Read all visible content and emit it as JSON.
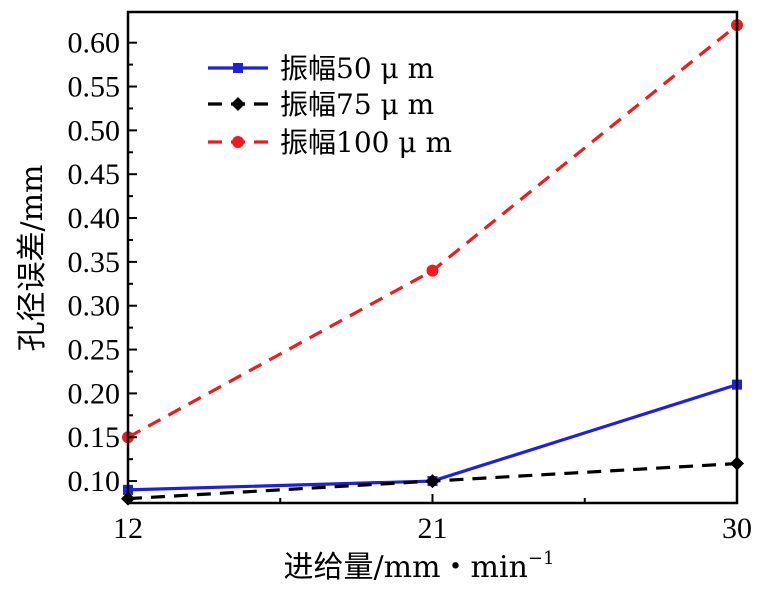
{
  "chart_data": {
    "type": "line",
    "title": "",
    "xlabel": "进给量/mm・min",
    "xlabel_sup": "−1",
    "ylabel": "孔径误差/mm",
    "x": [
      12,
      21,
      30
    ],
    "xticks": [
      "12",
      "21",
      "30"
    ],
    "xlim": [
      12,
      30
    ],
    "ylim": [
      0.075,
      0.635
    ],
    "yticks": [
      "0.10",
      "0.15",
      "0.20",
      "0.25",
      "0.30",
      "0.35",
      "0.40",
      "0.45",
      "0.50",
      "0.55",
      "0.60"
    ],
    "legend_position": "top-left",
    "grid": false,
    "series": [
      {
        "name": "振幅50 μ m",
        "values": [
          0.09,
          0.1,
          0.21
        ],
        "color": "#1f1fe0",
        "marker": "square",
        "dash": "solid"
      },
      {
        "name": "振幅75 μ m",
        "values": [
          0.08,
          0.1,
          0.12
        ],
        "color": "#000000",
        "marker": "diamond",
        "dash": "dashed"
      },
      {
        "name": "振幅100 μ m",
        "values": [
          0.15,
          0.34,
          0.62
        ],
        "color": "#ee1c1c",
        "marker": "circle",
        "dash": "dashed"
      }
    ]
  }
}
